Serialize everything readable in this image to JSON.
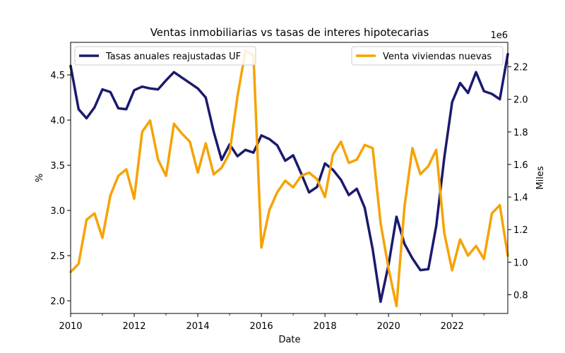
{
  "chart_data": {
    "type": "line",
    "title": "Ventas inmobiliarias vs tasas de interes hipotecarias",
    "xlabel": "Date",
    "ylabel_left": "%",
    "ylabel_right": "Miles",
    "right_offset_text": "1e6",
    "xlim": [
      2010.0,
      2023.75
    ],
    "ylim_left": [
      1.86,
      4.86
    ],
    "ylim_right": [
      0.685,
      2.35
    ],
    "x_ticks": [
      2010,
      2012,
      2014,
      2016,
      2018,
      2020,
      2022
    ],
    "y_left_ticks": [
      "2.0",
      "2.5",
      "3.0",
      "3.5",
      "4.0",
      "4.5"
    ],
    "y_right_ticks": [
      "0.8",
      "1.0",
      "1.2",
      "1.4",
      "1.6",
      "1.8",
      "2.0",
      "2.2"
    ],
    "grid": false,
    "x": [
      2010.0,
      2010.25,
      2010.5,
      2010.75,
      2011.0,
      2011.25,
      2011.5,
      2011.75,
      2012.0,
      2012.25,
      2012.5,
      2012.75,
      2013.0,
      2013.25,
      2013.5,
      2013.75,
      2014.0,
      2014.25,
      2014.5,
      2014.75,
      2015.0,
      2015.25,
      2015.5,
      2015.75,
      2016.0,
      2016.25,
      2016.5,
      2016.75,
      2017.0,
      2017.25,
      2017.5,
      2017.75,
      2018.0,
      2018.25,
      2018.5,
      2018.75,
      2019.0,
      2019.25,
      2019.5,
      2019.75,
      2020.0,
      2020.25,
      2020.5,
      2020.75,
      2021.0,
      2021.25,
      2021.5,
      2021.75,
      2022.0,
      2022.25,
      2022.5,
      2022.75,
      2023.0,
      2023.25,
      2023.5,
      2023.75
    ],
    "series": [
      {
        "name": "Tasas anuales reajustadas UF",
        "axis": "left",
        "color": "#1a1a6e",
        "values": [
          4.6,
          4.12,
          4.02,
          4.14,
          4.34,
          4.31,
          4.13,
          4.12,
          4.33,
          4.37,
          4.35,
          4.34,
          4.44,
          4.53,
          4.47,
          4.41,
          4.35,
          4.25,
          3.87,
          3.56,
          3.73,
          3.6,
          3.67,
          3.64,
          3.83,
          3.79,
          3.72,
          3.55,
          3.61,
          3.41,
          3.2,
          3.26,
          3.52,
          3.45,
          3.34,
          3.17,
          3.24,
          3.03,
          2.57,
          1.99,
          2.4,
          2.93,
          2.63,
          2.47,
          2.34,
          2.35,
          2.83,
          3.58,
          4.2,
          4.41,
          4.3,
          4.53,
          4.32,
          4.29,
          4.23,
          4.73
        ]
      },
      {
        "name": "Venta viviendas nuevas",
        "axis": "right",
        "color": "#f5a300",
        "values": [
          0.94,
          0.99,
          1.26,
          1.3,
          1.15,
          1.41,
          1.53,
          1.57,
          1.39,
          1.8,
          1.87,
          1.63,
          1.53,
          1.85,
          1.79,
          1.74,
          1.55,
          1.73,
          1.54,
          1.58,
          1.67,
          2.02,
          2.3,
          2.27,
          1.09,
          1.32,
          1.43,
          1.5,
          1.46,
          1.53,
          1.55,
          1.51,
          1.4,
          1.66,
          1.74,
          1.61,
          1.63,
          1.72,
          1.7,
          1.24,
          0.96,
          0.73,
          1.34,
          1.7,
          1.54,
          1.59,
          1.69,
          1.18,
          0.95,
          1.14,
          1.04,
          1.1,
          1.02,
          1.3,
          1.35,
          1.04
        ]
      }
    ]
  }
}
